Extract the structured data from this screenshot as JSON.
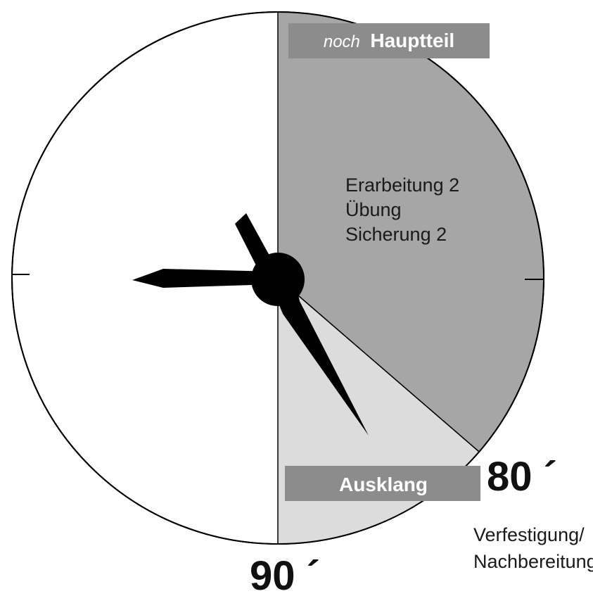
{
  "sections": {
    "hauptteil": {
      "prefix": "noch",
      "title": "Hauptteil",
      "lines": [
        "Erarbeitung 2",
        "Übung",
        "Sicherung 2"
      ]
    },
    "ausklang": {
      "title": "Ausklang",
      "lines": [
        "Verfestigung/",
        "Nachbereitung"
      ]
    }
  },
  "minute_marks": {
    "eighty": "80 ´",
    "ninety": "90 ´"
  },
  "colors": {
    "hauptteil_sector": "#a6a6a6",
    "ausklang_sector": "#dcdcdc",
    "label_box": "#8c8c8c",
    "hands": "#000000",
    "outline": "#000000"
  }
}
